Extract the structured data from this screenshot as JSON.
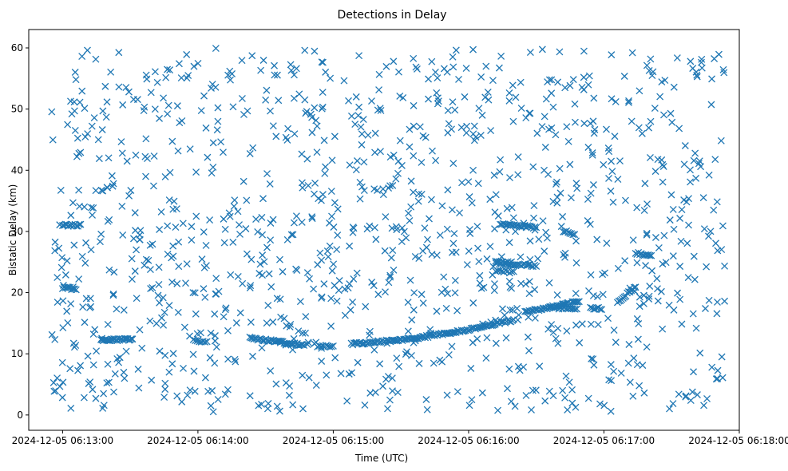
{
  "chart_data": {
    "type": "scatter",
    "title": "Detections in Delay",
    "xlabel": "Time (UTC)",
    "ylabel": "Bistatic Delay (km)",
    "marker": "x",
    "color": "#1f77b4",
    "grid": false,
    "legend": "none",
    "x_range": [
      "2024-12-05 06:12:45",
      "2024-12-05 06:18:00"
    ],
    "ylim": [
      -2.5,
      63
    ],
    "x_ticks": [
      "2024-12-05 06:13:00",
      "2024-12-05 06:14:00",
      "2024-12-05 06:15:00",
      "2024-12-05 06:16:00",
      "2024-12-05 06:17:00",
      "2024-12-05 06:18:00"
    ],
    "y_ticks": [
      0,
      10,
      20,
      30,
      40,
      50,
      60
    ],
    "noise_seed": 20241205,
    "noise_count": 1150,
    "noise_x_range": [
      "2024-12-05 06:12:55",
      "2024-12-05 06:17:54"
    ],
    "noise_y_range": [
      0.5,
      60
    ],
    "tracks": [
      {
        "x": [
          "2024-12-05 06:13:17",
          "2024-12-05 06:13:31"
        ],
        "y": [
          12.2,
          12.4
        ],
        "points": 28
      },
      {
        "x": [
          "2024-12-05 06:13:00",
          "2024-12-05 06:13:08"
        ],
        "y": [
          31.0,
          31.0
        ],
        "points": 14
      },
      {
        "x": [
          "2024-12-05 06:13:00",
          "2024-12-05 06:13:06"
        ],
        "y": [
          20.8,
          20.6
        ],
        "points": 10
      },
      {
        "x": [
          "2024-12-05 06:14:23",
          "2024-12-05 06:14:47"
        ],
        "y": [
          12.6,
          11.4
        ],
        "points": 42
      },
      {
        "x": [
          "2024-12-05 06:14:53",
          "2024-12-05 06:15:00"
        ],
        "y": [
          11.2,
          11.3
        ],
        "points": 10
      },
      {
        "x": [
          "2024-12-05 06:15:08",
          "2024-12-05 06:15:36"
        ],
        "y": [
          11.6,
          12.5
        ],
        "points": 48
      },
      {
        "x": [
          "2024-12-05 06:15:36",
          "2024-12-05 06:15:58"
        ],
        "y": [
          12.5,
          13.8
        ],
        "points": 38
      },
      {
        "x": [
          "2024-12-05 06:15:58",
          "2024-12-05 06:16:20"
        ],
        "y": [
          13.8,
          15.5
        ],
        "points": 36
      },
      {
        "x": [
          "2024-12-05 06:16:14",
          "2024-12-05 06:16:30"
        ],
        "y": [
          31.3,
          30.6
        ],
        "points": 26
      },
      {
        "x": [
          "2024-12-05 06:16:13",
          "2024-12-05 06:16:30"
        ],
        "y": [
          24.8,
          24.4
        ],
        "points": 24
      },
      {
        "x": [
          "2024-12-05 06:16:12",
          "2024-12-05 06:16:20"
        ],
        "y": [
          23.6,
          23.3
        ],
        "points": 10
      },
      {
        "x": [
          "2024-12-05 06:16:25",
          "2024-12-05 06:16:49"
        ],
        "y": [
          16.8,
          18.6
        ],
        "points": 40
      },
      {
        "x": [
          "2024-12-05 06:16:36",
          "2024-12-05 06:16:48"
        ],
        "y": [
          17.6,
          17.2
        ],
        "points": 16
      },
      {
        "x": [
          "2024-12-05 06:16:54",
          "2024-12-05 06:16:59"
        ],
        "y": [
          17.5,
          17.4
        ],
        "points": 8
      },
      {
        "x": [
          "2024-12-05 06:17:06",
          "2024-12-05 06:17:14"
        ],
        "y": [
          18.4,
          21.0
        ],
        "points": 14
      },
      {
        "x": [
          "2024-12-05 06:17:14",
          "2024-12-05 06:17:21"
        ],
        "y": [
          26.5,
          25.9
        ],
        "points": 12
      },
      {
        "x": [
          "2024-12-05 06:16:42",
          "2024-12-05 06:16:47"
        ],
        "y": [
          30.1,
          29.5
        ],
        "points": 8
      },
      {
        "x": [
          "2024-12-05 06:13:58",
          "2024-12-05 06:14:04"
        ],
        "y": [
          12.2,
          12.0
        ],
        "points": 8
      },
      {
        "x": [
          "2024-12-05 06:16:12",
          "2024-12-05 06:16:19"
        ],
        "y": [
          25.2,
          24.9
        ],
        "points": 10
      }
    ]
  }
}
